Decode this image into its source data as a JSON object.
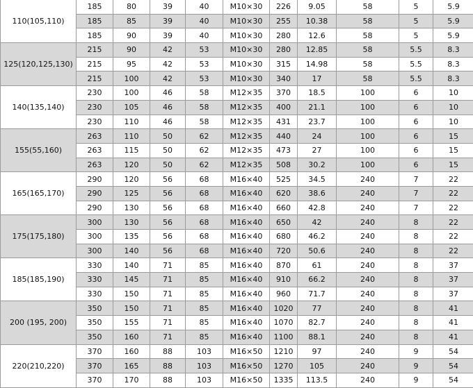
{
  "table": {
    "groups": [
      {
        "label": "110(105,110)",
        "rows": [
          [
            "185",
            "80",
            "39",
            "40",
            "M10×30",
            "226",
            "9.05",
            "58",
            "5",
            "5.9"
          ],
          [
            "185",
            "85",
            "39",
            "40",
            "M10×30",
            "255",
            "10.38",
            "58",
            "5",
            "5.9"
          ],
          [
            "185",
            "90",
            "39",
            "40",
            "M10×30",
            "280",
            "12.6",
            "58",
            "5",
            "5.9"
          ]
        ]
      },
      {
        "label": "125(120,125,130)",
        "rows": [
          [
            "215",
            "90",
            "42",
            "53",
            "M10×30",
            "280",
            "12.85",
            "58",
            "5.5",
            "8.3"
          ],
          [
            "215",
            "95",
            "42",
            "53",
            "M10×30",
            "315",
            "14.98",
            "58",
            "5.5",
            "8.3"
          ],
          [
            "215",
            "100",
            "42",
            "53",
            "M10×30",
            "340",
            "17",
            "58",
            "5.5",
            "8.3"
          ]
        ]
      },
      {
        "label": "140(135,140)",
        "rows": [
          [
            "230",
            "100",
            "46",
            "58",
            "M12×35",
            "370",
            "18.5",
            "100",
            "6",
            "10"
          ],
          [
            "230",
            "105",
            "46",
            "58",
            "M12×35",
            "400",
            "21.1",
            "100",
            "6",
            "10"
          ],
          [
            "230",
            "110",
            "46",
            "58",
            "M12×35",
            "431",
            "23.7",
            "100",
            "6",
            "10"
          ]
        ]
      },
      {
        "label": "155(55,160)",
        "rows": [
          [
            "263",
            "110",
            "50",
            "62",
            "M12×35",
            "440",
            "24",
            "100",
            "6",
            "15"
          ],
          [
            "263",
            "115",
            "50",
            "62",
            "M12×35",
            "473",
            "27",
            "100",
            "6",
            "15"
          ],
          [
            "263",
            "120",
            "50",
            "62",
            "M12×35",
            "508",
            "30.2",
            "100",
            "6",
            "15"
          ]
        ]
      },
      {
        "label": "165(165,170)",
        "rows": [
          [
            "290",
            "120",
            "56",
            "68",
            "M16×40",
            "525",
            "34.5",
            "240",
            "7",
            "22"
          ],
          [
            "290",
            "125",
            "56",
            "68",
            "M16×40",
            "620",
            "38.6",
            "240",
            "7",
            "22"
          ],
          [
            "290",
            "130",
            "56",
            "68",
            "M16×40",
            "660",
            "42.8",
            "240",
            "7",
            "22"
          ]
        ]
      },
      {
        "label": "175(175,180)",
        "rows": [
          [
            "300",
            "130",
            "56",
            "68",
            "M16×40",
            "650",
            "42",
            "240",
            "8",
            "22"
          ],
          [
            "300",
            "135",
            "56",
            "68",
            "M16×40",
            "680",
            "46.2",
            "240",
            "8",
            "22"
          ],
          [
            "300",
            "140",
            "56",
            "68",
            "M16×40",
            "720",
            "50.6",
            "240",
            "8",
            "22"
          ]
        ]
      },
      {
        "label": "185(185,190)",
        "rows": [
          [
            "330",
            "140",
            "71",
            "85",
            "M16×40",
            "870",
            "61",
            "240",
            "8",
            "37"
          ],
          [
            "330",
            "145",
            "71",
            "85",
            "M16×40",
            "910",
            "66.2",
            "240",
            "8",
            "37"
          ],
          [
            "330",
            "150",
            "71",
            "85",
            "M16×40",
            "960",
            "71.7",
            "240",
            "8",
            "37"
          ]
        ]
      },
      {
        "label": "200 (195, 200)",
        "rows": [
          [
            "350",
            "150",
            "71",
            "85",
            "M16×40",
            "1020",
            "77",
            "240",
            "8",
            "41"
          ],
          [
            "350",
            "155",
            "71",
            "85",
            "M16×40",
            "1070",
            "82.7",
            "240",
            "8",
            "41"
          ],
          [
            "350",
            "160",
            "71",
            "85",
            "M16×40",
            "1100",
            "88.1",
            "240",
            "8",
            "41"
          ]
        ]
      },
      {
        "label": "220(210,220)",
        "rows": [
          [
            "370",
            "160",
            "88",
            "103",
            "M16×50",
            "1210",
            "97",
            "240",
            "9",
            "54"
          ],
          [
            "370",
            "165",
            "88",
            "103",
            "M16×50",
            "1270",
            "105",
            "240",
            "9",
            "54"
          ],
          [
            "370",
            "170",
            "88",
            "103",
            "M16×50",
            "1335",
            "113.5",
            "240",
            "9",
            "54"
          ]
        ]
      }
    ]
  },
  "colors": {
    "shade": "#d8d8d8",
    "border": "#9a9a9a"
  }
}
